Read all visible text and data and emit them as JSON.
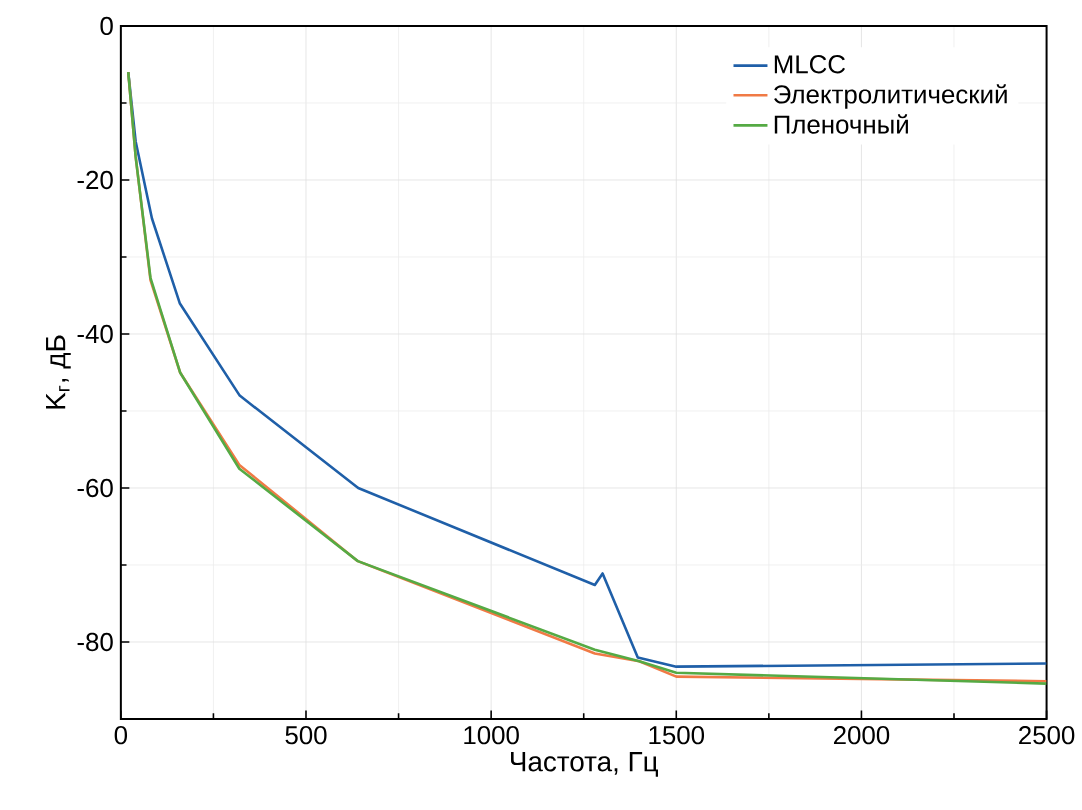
{
  "chart_data": {
    "type": "line",
    "xlabel": "Частота, Гц",
    "ylabel": "K$_{г}$, дБ",
    "xlim": [
      0,
      2500
    ],
    "ylim": [
      -90,
      0
    ],
    "xticks": [
      0,
      500,
      1000,
      1500,
      2000,
      2500
    ],
    "yticks": [
      -80,
      -60,
      -40,
      -20,
      0
    ],
    "grid": true,
    "legend": "top right",
    "series": [
      {
        "name": "MLCC",
        "color": "#1f5fa8",
        "x": [
          20,
          40,
          84,
          159,
          321,
          641,
          1280,
          1301,
          1396,
          1500,
          2500
        ],
        "values": [
          -6,
          -15,
          -25,
          -36,
          -48,
          -60,
          -72.6,
          -71.1,
          -82,
          -83.2,
          -82.8
        ]
      },
      {
        "name": "Электролитический",
        "color": "#f07a45",
        "x": [
          20,
          40,
          80,
          160,
          320,
          640,
          1280,
          1400,
          1500,
          2500
        ],
        "values": [
          -6,
          -17,
          -33,
          -45,
          -57,
          -69.5,
          -81.5,
          -82.5,
          -84.5,
          -85.1
        ]
      },
      {
        "name": "Пленочный",
        "color": "#55aa44",
        "x": [
          20,
          40,
          80,
          160,
          320,
          640,
          1280,
          1400,
          1500,
          2500
        ],
        "values": [
          -6,
          -17,
          -32.7,
          -45,
          -57.5,
          -69.5,
          -81,
          -82.5,
          -84,
          -85.4
        ]
      }
    ]
  }
}
